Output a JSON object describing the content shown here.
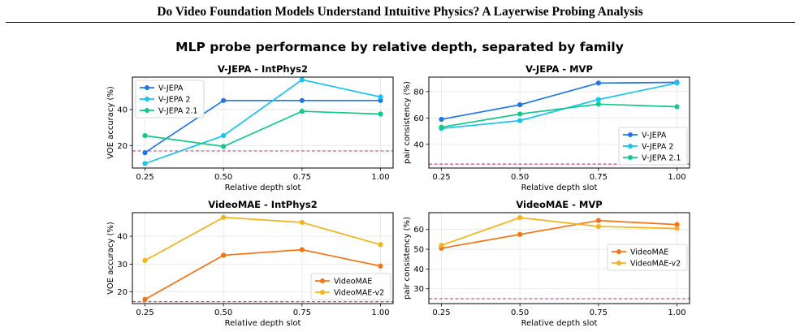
{
  "header": {
    "title": "Do Video Foundation Models Understand Intuitive Physics?  A Layerwise Probing Analysis"
  },
  "figure": {
    "suptitle": "MLP probe performance by relative depth, separated by family"
  },
  "colors": {
    "baseline": "#d6457a",
    "grid": "#e6e6e6",
    "V-JEPA": "#1f77e4",
    "V-JEPA 2": "#17c3f0",
    "V-JEPA 2.1": "#12c98a",
    "VideoMAE": "#f57313",
    "VideoMAE-v2": "#f6b21b"
  },
  "chart_data": [
    {
      "type": "line",
      "title": "V-JEPA - IntPhys2",
      "xlabel": "Relative depth slot",
      "ylabel": "VOE accuracy (%)",
      "x": [
        0.25,
        0.5,
        0.75,
        1.0
      ],
      "xticks": [
        "0.25",
        "0.50",
        "0.75",
        "1.00"
      ],
      "yticks": [
        20,
        40
      ],
      "xlim": [
        0.21,
        1.04
      ],
      "ylim": [
        7.5,
        58
      ],
      "grid": true,
      "legend": "upper-left",
      "baseline": 17,
      "series": [
        {
          "name": "V-JEPA",
          "values": [
            16,
            45,
            45,
            45
          ]
        },
        {
          "name": "V-JEPA 2",
          "values": [
            10,
            25.5,
            56.5,
            47
          ]
        },
        {
          "name": "V-JEPA 2.1",
          "values": [
            25.5,
            19.5,
            39,
            37.5
          ]
        }
      ]
    },
    {
      "type": "line",
      "title": "V-JEPA - MVP",
      "xlabel": "Relative depth slot",
      "ylabel": "pair consistency (%)",
      "x": [
        0.25,
        0.5,
        0.75,
        1.0
      ],
      "xticks": [
        "0.25",
        "0.50",
        "0.75",
        "1.00"
      ],
      "yticks": [
        40,
        60,
        80
      ],
      "xlim": [
        0.21,
        1.04
      ],
      "ylim": [
        22,
        91
      ],
      "grid": true,
      "legend": "lower-right",
      "baseline": 25,
      "series": [
        {
          "name": "V-JEPA",
          "values": [
            59,
            70,
            86.5,
            87
          ]
        },
        {
          "name": "V-JEPA 2",
          "values": [
            52,
            58,
            74,
            86.5
          ]
        },
        {
          "name": "V-JEPA 2.1",
          "values": [
            53,
            63,
            70.5,
            68.5
          ]
        }
      ]
    },
    {
      "type": "line",
      "title": "VideoMAE - IntPhys2",
      "xlabel": "Relative depth slot",
      "ylabel": "VOE accuracy (%)",
      "x": [
        0.25,
        0.5,
        0.75,
        1.0
      ],
      "xticks": [
        "0.25",
        "0.50",
        "0.75",
        "1.00"
      ],
      "yticks": [
        20,
        30,
        40
      ],
      "xlim": [
        0.21,
        1.04
      ],
      "ylim": [
        15.8,
        48.5
      ],
      "grid": true,
      "legend": "lower-right",
      "baseline": 16.5,
      "series": [
        {
          "name": "VideoMAE",
          "values": [
            17.3,
            33.2,
            35.2,
            29.3
          ]
        },
        {
          "name": "VideoMAE-v2",
          "values": [
            31.3,
            46.8,
            45,
            37
          ]
        }
      ]
    },
    {
      "type": "line",
      "title": "VideoMAE - MVP",
      "xlabel": "Relative depth slot",
      "ylabel": "pair consistency (%)",
      "x": [
        0.25,
        0.5,
        0.75,
        1.0
      ],
      "xticks": [
        "0.25",
        "0.50",
        "0.75",
        "1.00"
      ],
      "yticks": [
        30,
        40,
        50,
        60
      ],
      "xlim": [
        0.21,
        1.04
      ],
      "ylim": [
        22.5,
        68.5
      ],
      "grid": true,
      "legend": "center-right",
      "baseline": 25,
      "series": [
        {
          "name": "VideoMAE",
          "values": [
            50.5,
            57.5,
            64.5,
            62.5
          ]
        },
        {
          "name": "VideoMAE-v2",
          "values": [
            52,
            66,
            61.5,
            60.5
          ]
        }
      ]
    }
  ]
}
